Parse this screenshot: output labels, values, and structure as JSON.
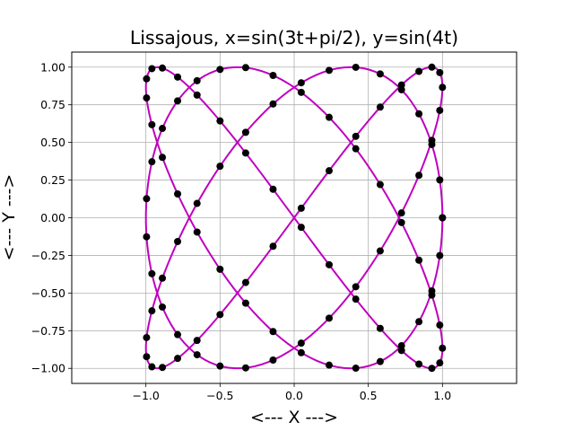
{
  "chart_data": {
    "type": "line",
    "title": "Lissajous, x=sin(3t+pi/2), y=sin(4t)",
    "xlabel": "<--- X --->",
    "ylabel": "<--- Y --->",
    "xlim": [
      -1.5,
      1.5
    ],
    "ylim": [
      -1.1,
      1.1
    ],
    "xticks": [
      -1.0,
      -0.5,
      0.0,
      0.5,
      1.0
    ],
    "xtick_labels": [
      "−1.0",
      "−0.5",
      "0.0",
      "0.5",
      "1.0"
    ],
    "yticks": [
      -1.0,
      -0.75,
      -0.5,
      -0.25,
      0.0,
      0.25,
      0.5,
      0.75,
      1.0
    ],
    "ytick_labels": [
      "−1.00",
      "−0.75",
      "−0.50",
      "−0.25",
      "0.00",
      "0.25",
      "0.50",
      "0.75",
      "1.00"
    ],
    "grid": true,
    "series": [
      {
        "kind": "curve",
        "parametric": {
          "x": "sin(3t+pi/2)",
          "y": "sin(4t)",
          "t_range": [
            0,
            6.283185
          ]
        },
        "sample_count": 400,
        "color": "#bf00bf"
      },
      {
        "kind": "markers",
        "parametric": {
          "x": "sin(3t+pi/2)",
          "y": "sin(4t)",
          "t_range": [
            0,
            6.283185
          ]
        },
        "sample_count": 100,
        "color": "#000000"
      }
    ]
  }
}
